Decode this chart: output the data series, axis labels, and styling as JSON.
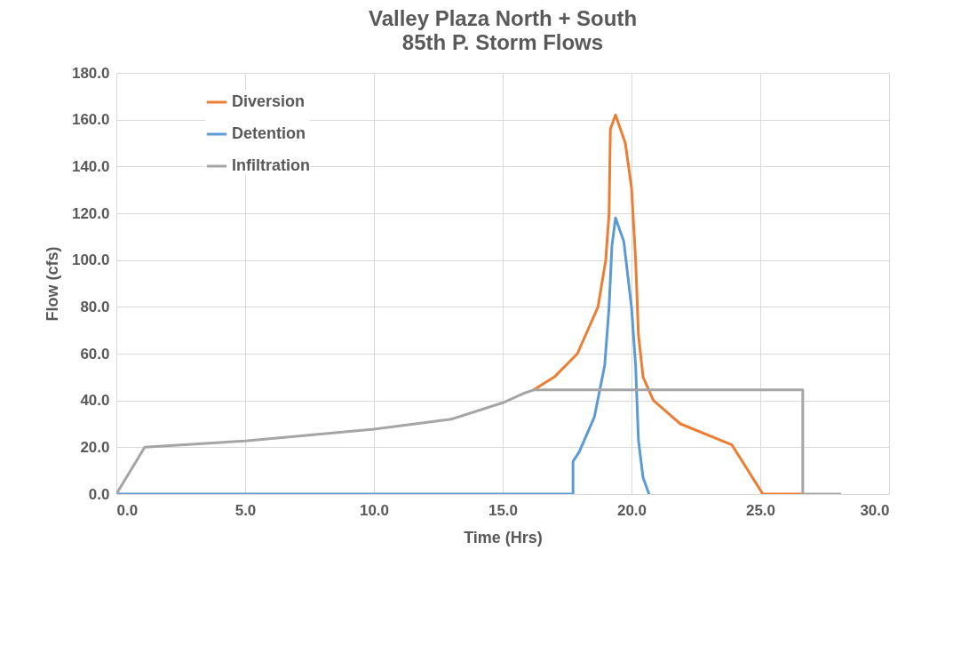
{
  "chart_data": {
    "type": "line",
    "title": "Valley Plaza North + South",
    "subtitle": "85th P. Storm Flows",
    "xlabel": "Time (Hrs)",
    "ylabel": "Flow (cfs)",
    "xlim": [
      0,
      30
    ],
    "ylim": [
      0,
      180
    ],
    "xticks": [
      {
        "value": 0,
        "label": "0.0"
      },
      {
        "value": 5,
        "label": "5.0"
      },
      {
        "value": 10,
        "label": "10.0"
      },
      {
        "value": 15,
        "label": "15.0"
      },
      {
        "value": 20,
        "label": "20.0"
      },
      {
        "value": 25,
        "label": "25.0"
      },
      {
        "value": 30,
        "label": "30.0"
      }
    ],
    "yticks": [
      {
        "value": 0,
        "label": "0.0"
      },
      {
        "value": 20,
        "label": "20.0"
      },
      {
        "value": 40,
        "label": "40.0"
      },
      {
        "value": 60,
        "label": "60.0"
      },
      {
        "value": 80,
        "label": "80.0"
      },
      {
        "value": 100,
        "label": "100.0"
      },
      {
        "value": 120,
        "label": "120.0"
      },
      {
        "value": 140,
        "label": "140.0"
      },
      {
        "value": 160,
        "label": "160.0"
      },
      {
        "value": 180,
        "label": "180.0"
      }
    ],
    "grid": true,
    "legend": "top left",
    "series": [
      {
        "name": "Diversion",
        "color": "#ed7d31",
        "x": [
          16.2,
          17.0,
          17.9,
          18.7,
          19.0,
          19.13,
          19.18,
          19.38,
          19.76,
          20.0,
          20.16,
          20.27,
          20.45,
          20.85,
          21.9,
          23.9,
          25.1,
          26.6
        ],
        "values": [
          44.5,
          50,
          60,
          80,
          100,
          120,
          156,
          162,
          150,
          131,
          100,
          68,
          50,
          40,
          30,
          21,
          0,
          0
        ]
      },
      {
        "name": "Detention",
        "color": "#5b9bd5",
        "x": [
          0,
          17.73,
          17.73,
          17.97,
          18.56,
          18.96,
          19.13,
          19.24,
          19.38,
          19.7,
          20.0,
          20.16,
          20.27,
          20.45,
          20.68
        ],
        "values": [
          0,
          0,
          14,
          18,
          33,
          55,
          80,
          106,
          118,
          108,
          80,
          55,
          23,
          7,
          0
        ]
      },
      {
        "name": "Infiltration",
        "color": "#a5a5a5",
        "x": [
          0,
          1.1,
          5,
          10,
          13,
          15,
          15.8,
          16.2,
          26.65,
          26.65,
          28.1
        ],
        "values": [
          0,
          20,
          22.7,
          27.7,
          32,
          39,
          43,
          44.5,
          44.5,
          0,
          0
        ]
      }
    ]
  }
}
